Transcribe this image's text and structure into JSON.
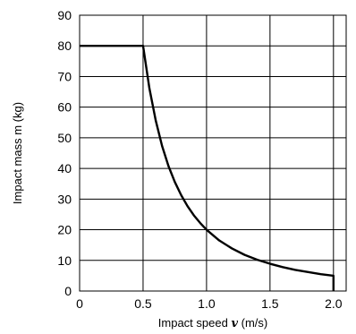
{
  "chart_data": {
    "type": "line",
    "title": "",
    "xlabel": {
      "prefix": "Impact speed ",
      "variable": "v",
      "suffix": " (m/s)"
    },
    "ylabel": "Impact mass m (kg)",
    "xlim": [
      0,
      2.1
    ],
    "ylim": [
      0,
      90
    ],
    "x_ticks": [
      0,
      0.5,
      1.0,
      1.5,
      2.0
    ],
    "x_tick_labels": [
      "0",
      "0.5",
      "1.0",
      "1.5",
      "2.0"
    ],
    "y_ticks": [
      0,
      10,
      20,
      30,
      40,
      50,
      60,
      70,
      80,
      90
    ],
    "y_tick_labels": [
      "0",
      "10",
      "20",
      "30",
      "40",
      "50",
      "60",
      "70",
      "80",
      "90"
    ],
    "grid": true,
    "series": [
      {
        "x": [
          0,
          0.5,
          0.55,
          0.6,
          0.65,
          0.7,
          0.75,
          0.8,
          0.85,
          0.9,
          0.95,
          1.0,
          1.1,
          1.2,
          1.3,
          1.4,
          1.5,
          1.6,
          1.7,
          1.8,
          1.9,
          2.0,
          2.0
        ],
        "y": [
          80,
          80,
          66.1,
          55.6,
          47.3,
          40.8,
          35.6,
          31.3,
          27.7,
          24.7,
          22.2,
          20.0,
          16.5,
          13.9,
          11.8,
          10.2,
          8.9,
          7.8,
          6.9,
          6.2,
          5.5,
          5.0,
          0
        ],
        "color": "#000000"
      }
    ]
  }
}
